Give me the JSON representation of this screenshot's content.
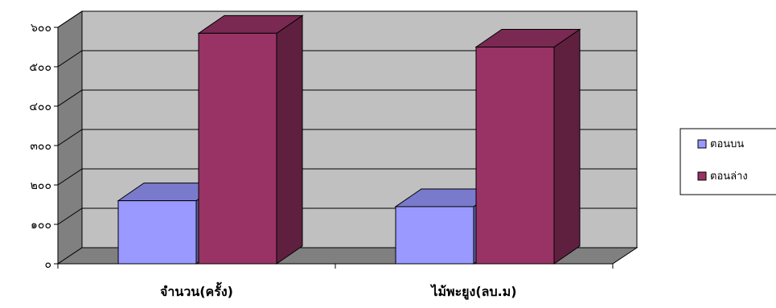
{
  "chart_data": {
    "type": "bar",
    "style": "3d-clustered-column",
    "categories": [
      "จำนวน(ครั้ง)",
      "ไม้พะยูง(ลบ.ม)"
    ],
    "series": [
      {
        "name": "ตอนบน",
        "values": [
          160,
          145
        ],
        "color": "#9999ff"
      },
      {
        "name": "ตอนล่าง",
        "values": [
          585,
          550
        ],
        "color": "#993366"
      }
    ],
    "y_ticks": [
      "๐",
      "๑๐๐",
      "๒๐๐",
      "๓๐๐",
      "๔๐๐",
      "๕๐๐",
      "๖๐๐"
    ],
    "ylim": [
      0,
      600
    ],
    "grid": true,
    "legend_position": "right",
    "title": "",
    "xlabel": "",
    "ylabel": ""
  }
}
